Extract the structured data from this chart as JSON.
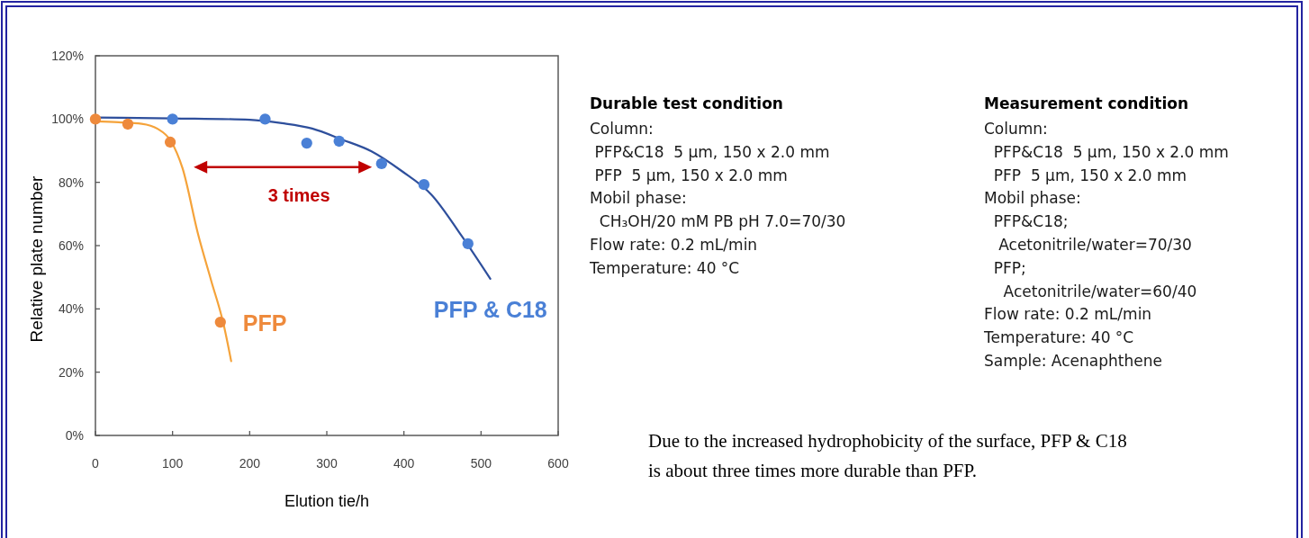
{
  "chart_data": {
    "type": "scatter",
    "xlabel": "Elution tie/h",
    "ylabel": "Relative plate number",
    "xlim": [
      0,
      600
    ],
    "xticks": [
      0,
      100,
      200,
      300,
      400,
      500,
      600
    ],
    "ylim": [
      0,
      120
    ],
    "yticks": [
      {
        "value": 0,
        "label": "0%"
      },
      {
        "value": 20,
        "label": "20%"
      },
      {
        "value": 40,
        "label": "40%"
      },
      {
        "value": 60,
        "label": "60%"
      },
      {
        "value": 80,
        "label": "80%"
      },
      {
        "value": 100,
        "label": "100%"
      },
      {
        "value": 120,
        "label": "120%"
      }
    ],
    "marker": "circle",
    "line_style": "solid",
    "series": [
      {
        "type": "line",
        "marker": "none",
        "color": "#2e4f9c",
        "x": [
          0,
          100,
          200,
          242,
          281,
          320,
          358,
          397,
          436,
          475,
          512
        ],
        "values": [
          100.5,
          100.2,
          99.8,
          98.7,
          97,
          93.5,
          89.8,
          83.6,
          76,
          63,
          49.5
        ]
      },
      {
        "type": "line",
        "marker": "none",
        "color": "#f5a33a",
        "x": [
          0,
          30,
          60,
          80,
          98,
          113,
          133,
          150,
          166,
          176
        ],
        "values": [
          99.3,
          99,
          98.5,
          97,
          93,
          84.4,
          63.7,
          49,
          35.3,
          23.5
        ]
      },
      {
        "name": "PFP & C18",
        "color": "#4a80d6",
        "x": [
          100,
          220,
          274,
          316,
          371,
          426,
          483
        ],
        "values": [
          100,
          100,
          92.4,
          93,
          85.9,
          79.3,
          60.6
        ]
      },
      {
        "name": "PFP",
        "color": "#ee8a3c",
        "x": [
          0,
          42,
          97,
          162
        ],
        "values": [
          100,
          98.4,
          92.7,
          35.8
        ]
      }
    ],
    "annotations": [
      "3 times",
      "Durable test condition",
      "Column:\n PFP&C18  5 µm, 150 x 2.0 mm\n PFP  5 µm, 150 x 2.0 mm\nMobil phase:\n  CH₃OH/20 mM PB pH 7.0=70/30\nFlow rate: 0.2 mL/min\nTemperature: 40 °C",
      "Measurement condition",
      "Column:\n  PFP&C18  5 µm, 150 x 2.0 mm\n  PFP  5 µm, 150 x 2.0 mm\nMobil phase:\n  PFP&C18;\n   Acetonitrile/water=70/30\n  PFP;\n    Acetonitrile/water=60/40\nFlow rate: 0.2 mL/min\nTemperature: 40 °C\nSample: Acenaphthene",
      "Due to the increased hydrophobicity of the surface, PFP & C18 is about three times more durable than PFP."
    ]
  }
}
